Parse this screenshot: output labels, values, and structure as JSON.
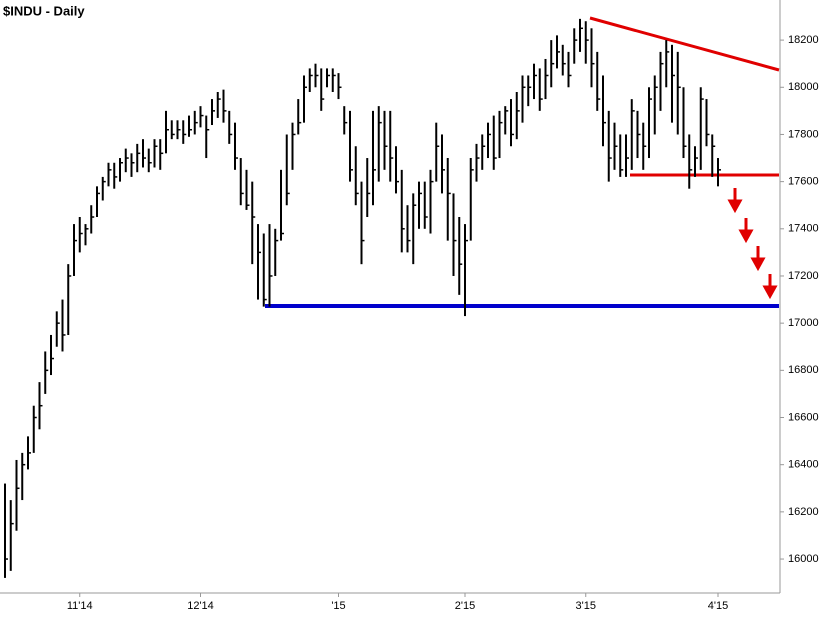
{
  "chart_data": {
    "type": "ohlc",
    "title": "$INDU - Daily",
    "categories": [
      null,
      null,
      null,
      null,
      null,
      null,
      null,
      null,
      null,
      null,
      null,
      null,
      null,
      "11'14",
      null,
      null,
      null,
      null,
      null,
      null,
      null,
      null,
      null,
      null,
      null,
      null,
      null,
      null,
      null,
      null,
      null,
      null,
      null,
      null,
      "12'14",
      null,
      null,
      null,
      null,
      null,
      null,
      null,
      null,
      null,
      null,
      null,
      null,
      null,
      null,
      null,
      null,
      null,
      null,
      null,
      null,
      null,
      null,
      null,
      "'15",
      null,
      null,
      null,
      null,
      null,
      null,
      null,
      null,
      null,
      null,
      null,
      null,
      null,
      null,
      null,
      null,
      null,
      null,
      null,
      null,
      null,
      "2'15",
      null,
      null,
      null,
      null,
      null,
      null,
      null,
      null,
      null,
      null,
      null,
      null,
      null,
      null,
      null,
      null,
      null,
      null,
      null,
      null,
      "3'15",
      null,
      null,
      null,
      null,
      null,
      null,
      null,
      null,
      null,
      null,
      null,
      null,
      null,
      null,
      null,
      null,
      null,
      null,
      null,
      null,
      null,
      null,
      "4'15",
      null,
      null,
      null,
      null,
      null,
      null,
      null,
      null,
      null,
      null
    ],
    "high": [
      16320,
      16250,
      16420,
      16450,
      16520,
      16650,
      16750,
      16880,
      16950,
      17050,
      17100,
      17250,
      17420,
      17450,
      17420,
      17500,
      17580,
      17620,
      17680,
      17680,
      17700,
      17740,
      17720,
      17760,
      17780,
      17740,
      17780,
      17780,
      17900,
      17860,
      17860,
      17860,
      17880,
      17900,
      17920,
      17880,
      17950,
      17980,
      17990,
      17900,
      17850,
      17700,
      17650,
      17600,
      17420,
      17380,
      17420,
      17400,
      17650,
      17800,
      17850,
      17950,
      18050,
      18080,
      18100,
      18080,
      18080,
      18080,
      18060,
      17920,
      17900,
      17750,
      17600,
      17700,
      17900,
      17920,
      17900,
      17900,
      17750,
      17650,
      17500,
      17550,
      17600,
      17600,
      17650,
      17850,
      17800,
      17700,
      17550,
      17450,
      17420,
      17700,
      17760,
      17800,
      17850,
      17880,
      17900,
      17920,
      17950,
      17980,
      18050,
      18050,
      18100,
      18080,
      18120,
      18200,
      18220,
      18180,
      18150,
      18250,
      18290,
      18280,
      18250,
      18150,
      18050,
      17900,
      17850,
      17800,
      17800,
      17950,
      17900,
      17850,
      18000,
      18050,
      18150,
      18200,
      18180,
      18150,
      18000,
      17800,
      17750,
      18000,
      17950,
      17800,
      17700,
      null,
      null,
      null,
      null,
      null,
      null,
      null,
      null,
      null,
      null
    ],
    "low": [
      15920,
      15950,
      16120,
      16250,
      16380,
      16450,
      16550,
      16700,
      16780,
      16900,
      16880,
      16950,
      17200,
      17300,
      17330,
      17380,
      17450,
      17520,
      17580,
      17570,
      17600,
      17640,
      17620,
      17640,
      17660,
      17640,
      17660,
      17650,
      17720,
      17780,
      17780,
      17760,
      17790,
      17800,
      17830,
      17700,
      17840,
      17870,
      17850,
      17760,
      17650,
      17500,
      17480,
      17250,
      17100,
      17070,
      17070,
      17200,
      17350,
      17500,
      17650,
      17800,
      17850,
      17980,
      18000,
      17900,
      18000,
      17980,
      17950,
      17800,
      17600,
      17500,
      17250,
      17450,
      17500,
      17600,
      17650,
      17600,
      17550,
      17300,
      17300,
      17250,
      17400,
      17400,
      17380,
      17600,
      17550,
      17350,
      17200,
      17120,
      17030,
      17350,
      17600,
      17650,
      17700,
      17650,
      17700,
      17800,
      17750,
      17780,
      17850,
      17920,
      17950,
      17900,
      17950,
      18000,
      18080,
      18050,
      18000,
      18100,
      18150,
      18100,
      18000,
      17900,
      17750,
      17600,
      17650,
      17620,
      17620,
      17650,
      17700,
      17650,
      17700,
      17800,
      17900,
      18000,
      17850,
      17800,
      17700,
      17570,
      17620,
      17650,
      17750,
      17620,
      17580,
      null,
      null,
      null,
      null,
      null,
      null,
      null,
      null,
      null,
      null
    ],
    "close": [
      16000,
      16150,
      16300,
      16400,
      16450,
      16600,
      16650,
      16800,
      16850,
      17000,
      16950,
      17200,
      17350,
      17380,
      17400,
      17450,
      17550,
      17600,
      17650,
      17620,
      17680,
      17700,
      17680,
      17720,
      17700,
      17680,
      17750,
      17720,
      17820,
      17800,
      17820,
      17800,
      17820,
      17850,
      17880,
      17820,
      17900,
      17950,
      17900,
      17800,
      17700,
      17550,
      17500,
      17450,
      17300,
      17100,
      17200,
      17350,
      17380,
      17550,
      17800,
      17850,
      18000,
      18050,
      18050,
      17950,
      18050,
      18050,
      18000,
      17850,
      17650,
      17550,
      17350,
      17550,
      17650,
      17850,
      17750,
      17700,
      17600,
      17400,
      17350,
      17500,
      17550,
      17450,
      17600,
      17750,
      17650,
      17550,
      17350,
      17250,
      17350,
      17650,
      17700,
      17750,
      17800,
      17700,
      17850,
      17900,
      17800,
      17900,
      18000,
      18000,
      18050,
      17950,
      18050,
      18100,
      18150,
      18100,
      18050,
      18200,
      18250,
      18200,
      18100,
      17950,
      17850,
      17700,
      17750,
      17650,
      17700,
      17900,
      17800,
      17750,
      17950,
      18000,
      18100,
      18150,
      18050,
      18000,
      17750,
      17650,
      17700,
      17950,
      17800,
      17750,
      17650,
      null,
      null,
      null,
      null,
      null,
      null,
      null,
      null,
      null,
      null
    ],
    "color": "#000000",
    "ylim": [
      15856,
      18370
    ],
    "yticks": [
      16000,
      16200,
      16400,
      16600,
      16800,
      17000,
      17200,
      17400,
      17600,
      17800,
      18000,
      18200
    ]
  }
}
